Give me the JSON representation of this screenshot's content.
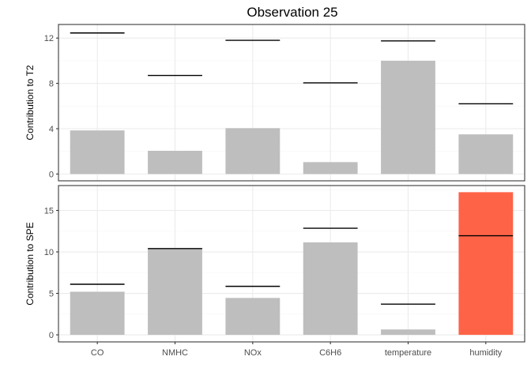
{
  "chart_data": {
    "title": "Observation 25",
    "categories": [
      "CO",
      "NMHC",
      "NOx",
      "C6H6",
      "temperature",
      "humidity"
    ],
    "bar_color_normal": "#bebebe",
    "bar_color_exceed": "#ff6347",
    "panels": [
      {
        "type": "bar",
        "ylabel": "Contribution to T2",
        "ylim": [
          -0.6,
          13.2
        ],
        "yticks": [
          0,
          4,
          8,
          12
        ],
        "values": [
          3.85,
          2.05,
          4.05,
          1.05,
          10.0,
          3.5
        ],
        "limits": [
          12.45,
          8.7,
          11.8,
          8.05,
          11.75,
          6.2
        ]
      },
      {
        "type": "bar",
        "ylabel": "Contribution to SPE",
        "ylim": [
          -0.85,
          18.0
        ],
        "yticks": [
          0,
          5,
          10,
          15
        ],
        "values": [
          5.2,
          10.35,
          4.45,
          11.15,
          0.65,
          17.2
        ],
        "limits": [
          6.1,
          10.4,
          5.85,
          12.85,
          3.7,
          11.95
        ]
      }
    ]
  }
}
